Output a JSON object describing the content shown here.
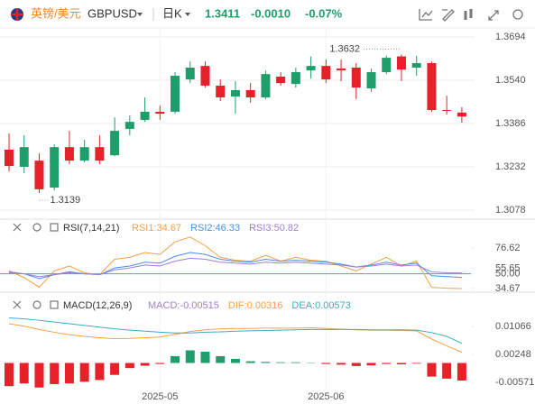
{
  "header": {
    "name": "英镑/美元",
    "symbol": "GBPUSD",
    "period": "日K",
    "price": "1.3411",
    "change": "-0.0010",
    "change_pct": "-0.07%"
  },
  "chart_data": [
    {
      "type": "candlestick",
      "up_color": "#1e9e6a",
      "down_color": "#e8202a",
      "categories": [
        null,
        null,
        null,
        null,
        null,
        null,
        null,
        null,
        null,
        null,
        "2025-05",
        null,
        null,
        null,
        null,
        null,
        null,
        null,
        null,
        null,
        null,
        "2025-06",
        null,
        null,
        null,
        null,
        null,
        null,
        null,
        null,
        null
      ],
      "open": [
        1.3293,
        1.3232,
        1.3254,
        1.3158,
        1.3302,
        1.3254,
        1.3302,
        1.3273,
        1.3367,
        1.3399,
        1.3428,
        1.3428,
        1.3543,
        1.3591,
        1.3521,
        1.3482,
        1.3505,
        1.3479,
        1.3553,
        1.3527,
        1.3575,
        1.3591,
        1.3582,
        1.3585,
        1.3511,
        1.3569,
        1.3625,
        1.3585,
        1.3601,
        1.3434,
        1.3425
      ],
      "high": [
        1.3351,
        1.3344,
        1.328,
        1.3312,
        1.336,
        1.3328,
        1.3344,
        1.3408,
        1.3415,
        1.3479,
        1.345,
        1.3569,
        1.3607,
        1.3607,
        1.3543,
        1.3537,
        1.353,
        1.3575,
        1.3569,
        1.3585,
        1.3625,
        1.3614,
        1.3614,
        1.3601,
        1.3582,
        1.3628,
        1.3632,
        1.3627,
        1.3607,
        1.3485,
        1.3444
      ],
      "low": [
        1.3216,
        1.3209,
        1.3139,
        1.3148,
        1.3241,
        1.3248,
        1.3241,
        1.327,
        1.3344,
        1.3392,
        1.3399,
        1.3421,
        1.353,
        1.3514,
        1.3466,
        1.3421,
        1.346,
        1.3473,
        1.3521,
        1.3514,
        1.3546,
        1.353,
        1.3537,
        1.3473,
        1.3498,
        1.3562,
        1.3537,
        1.3556,
        1.3428,
        1.3418,
        1.3389
      ],
      "close": [
        1.3235,
        1.3302,
        1.3152,
        1.3302,
        1.3254,
        1.3302,
        1.3254,
        1.336,
        1.3392,
        1.3428,
        1.3421,
        1.3556,
        1.3585,
        1.3521,
        1.3479,
        1.3505,
        1.3479,
        1.3562,
        1.353,
        1.3569,
        1.3591,
        1.3543,
        1.3575,
        1.3514,
        1.3569,
        1.362,
        1.3578,
        1.3601,
        1.3434,
        1.3431,
        1.3411
      ],
      "ylim": [
        1.3049,
        1.3723
      ],
      "yticks": [
        1.3694,
        {
          "value": 1.354,
          "label": "1.3540"
        },
        1.3386,
        1.3232,
        1.3078
      ],
      "grid": true
    },
    {
      "type": "line",
      "title": "RSI(7,14,21)",
      "ylim": [
        29.1,
        92.5
      ],
      "yticks": [
        76.62,
        55.65,
        {
          "value": 50,
          "label": "50.00"
        },
        34.67
      ],
      "level": {
        "value": 50,
        "color": "#36aecb"
      },
      "series": [
        {
          "name": "RSI1:34.67",
          "color": "#f5a046",
          "values": [
            53,
            46,
            36,
            53,
            58,
            51,
            49,
            65,
            67,
            72,
            70,
            83,
            88,
            79,
            67,
            64,
            63,
            69,
            63,
            67,
            64,
            63,
            58,
            53,
            60,
            67,
            58,
            63,
            36,
            35,
            34.67
          ]
        },
        {
          "name": "RSI2:46.33",
          "color": "#4a8fe0",
          "values": [
            52,
            50,
            45,
            49,
            52,
            50,
            49,
            56,
            58,
            62,
            61,
            68,
            72,
            70,
            65,
            63,
            62,
            65,
            63,
            64,
            63,
            62,
            60,
            57,
            59,
            62,
            59,
            61,
            48,
            47,
            46.33
          ]
        },
        {
          "name": "RSI3:50.82",
          "color": "#9a7fd6",
          "values": [
            51,
            50,
            47,
            49,
            51,
            50,
            49,
            54,
            56,
            59,
            58,
            63,
            66,
            65,
            62,
            61,
            60,
            62,
            61,
            62,
            61,
            60,
            59,
            57,
            58,
            60,
            58,
            59,
            52,
            51,
            50.82
          ]
        }
      ]
    },
    {
      "type": "combo",
      "title": "MACD(12,26,9)",
      "ylim": [
        -0.0078,
        0.0144
      ],
      "yticks": [
        0.01066,
        0.00248,
        -0.00571
      ],
      "up_color": "#1e9e6a",
      "down_color": "#e8202a",
      "series": [
        {
          "name": "MACD:-0.00515",
          "color": "#9a7fd6",
          "kind": "bar",
          "values": [
            -0.0068,
            -0.006,
            -0.0072,
            -0.0062,
            -0.006,
            -0.0055,
            -0.005,
            -0.0035,
            -0.0015,
            -0.0008,
            -0.0003,
            0.002,
            0.0037,
            0.0033,
            0.002,
            0.0012,
            0.0005,
            0.0003,
            0.0002,
            0.0002,
            0.0001,
            -0.0003,
            -0.0005,
            -0.0009,
            -0.0007,
            -0.0003,
            -0.0004,
            -0.0002,
            -0.004,
            -0.0046,
            -0.00515
          ]
        },
        {
          "name": "DIF:0.00316",
          "color": "#f5a046",
          "kind": "line",
          "values": [
            0.0115,
            0.0108,
            0.0098,
            0.009,
            0.0083,
            0.0078,
            0.0074,
            0.0071,
            0.0072,
            0.0074,
            0.0076,
            0.0084,
            0.0092,
            0.0097,
            0.01,
            0.0101,
            0.0101,
            0.0102,
            0.0102,
            0.0102,
            0.0103,
            0.0101,
            0.0099,
            0.0097,
            0.0096,
            0.0096,
            0.0095,
            0.0094,
            0.007,
            0.005,
            0.00316
          ]
        },
        {
          "name": "DEA:0.00573",
          "color": "#36aecb",
          "kind": "line",
          "values": [
            0.0132,
            0.0129,
            0.0125,
            0.012,
            0.0115,
            0.011,
            0.0105,
            0.01,
            0.0096,
            0.0093,
            0.009,
            0.0088,
            0.0088,
            0.009,
            0.0091,
            0.0093,
            0.0094,
            0.0095,
            0.0096,
            0.0097,
            0.0098,
            0.0098,
            0.0098,
            0.0098,
            0.0097,
            0.0097,
            0.0097,
            0.0096,
            0.0089,
            0.0078,
            0.00573
          ]
        }
      ]
    }
  ]
}
